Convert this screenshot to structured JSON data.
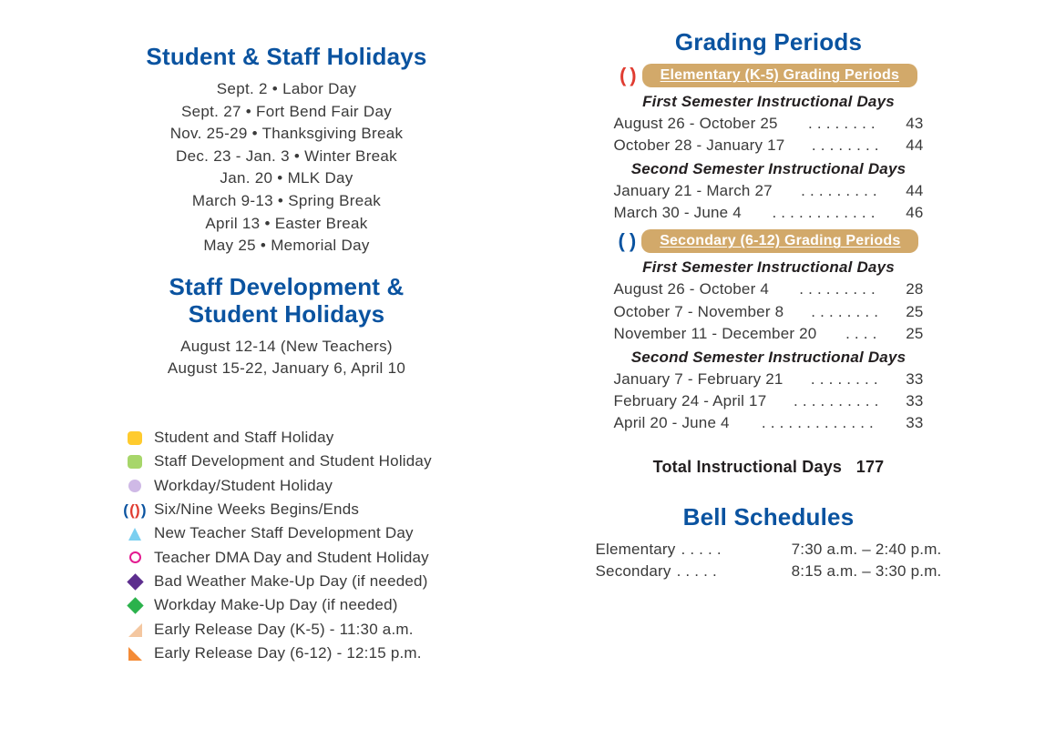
{
  "colors": {
    "heading_blue": "#0a53a0",
    "body_text": "#3a3a3a",
    "pill_bg": "#d2a96a",
    "pill_text": "#ffffff",
    "yellow": "#ffcb2e",
    "lime": "#a7d66a",
    "lavender": "#cfb9e6",
    "red_paren": "#e03c31",
    "sky_triangle": "#7bcff0",
    "pink_ring": "#e31b90",
    "purple_diamond": "#5d2e8e",
    "green_diamond": "#2bb24c",
    "tan_triangle": "#f4c7a0",
    "orange_triangle": "#f48b36"
  },
  "typography": {
    "heading_fontsize_pt": 20,
    "body_fontsize_pt": 13,
    "pill_fontsize_pt": 12,
    "font_family": "Arial, Helvetica, sans-serif"
  },
  "holidays": {
    "title": "Student & Staff Holidays",
    "items": [
      {
        "date": "Sept. 2",
        "name": "Labor Day"
      },
      {
        "date": "Sept. 27",
        "name": "Fort Bend Fair Day"
      },
      {
        "date": "Nov. 25-29",
        "name": "Thanksgiving Break"
      },
      {
        "date": "Dec. 23 - Jan. 3",
        "name": "Winter Break"
      },
      {
        "date": "Jan. 20",
        "name": "MLK Day"
      },
      {
        "date": "March 9-13",
        "name": "Spring Break"
      },
      {
        "date": "April 13",
        "name": "Easter Break"
      },
      {
        "date": "May 25",
        "name": "Memorial Day"
      }
    ]
  },
  "staff_dev": {
    "title": "Staff Development &\nStudent Holidays",
    "lines": [
      "August 12-14 (New Teachers)",
      "August 15-22, January 6, April 10"
    ]
  },
  "legend": [
    {
      "icon": "sq-yellow",
      "label": "Student and Staff Holiday"
    },
    {
      "icon": "sq-green",
      "label": "Staff Development and Student Holiday"
    },
    {
      "icon": "dot-lav",
      "label": "Workday/Student Holiday"
    },
    {
      "icon": "parens",
      "label": "Six/Nine Weeks Begins/Ends"
    },
    {
      "icon": "tri-up",
      "label": "New Teacher Staff Development Day"
    },
    {
      "icon": "ring-red",
      "label": "Teacher DMA Day and Student Holiday"
    },
    {
      "icon": "di-purple",
      "label": "Bad Weather Make-Up Day (if needed)"
    },
    {
      "icon": "di-green",
      "label": "Workday Make-Up Day (if needed)"
    },
    {
      "icon": "tri-br",
      "label": "Early Release Day (K-5) - 11:30 a.m."
    },
    {
      "icon": "tri-bl",
      "label": "Early Release Day (6-12) - 12:15 p.m."
    }
  ],
  "grading": {
    "title": "Grading Periods",
    "elementary": {
      "pill": "Elementary (K-5) Grading Periods",
      "sem1_title": "First Semester Instructional Days",
      "sem1": [
        {
          "range": "August 26 - October 25",
          "dots": " . . . . . . . .",
          "days": "43"
        },
        {
          "range": "October 28 - January 17",
          "dots": ". . . . . . . .",
          "days": "44"
        }
      ],
      "sem2_title": "Second Semester Instructional Days",
      "sem2": [
        {
          "range": "January 21 - March 27",
          "dots": " . . . . . . . . .",
          "days": "44"
        },
        {
          "range": "March 30 - June 4",
          "dots": " . . . . . . . . . . . .",
          "days": "46"
        }
      ]
    },
    "secondary": {
      "pill": "Secondary (6-12) Grading Periods",
      "sem1_title": "First Semester Instructional Days",
      "sem1": [
        {
          "range": "August 26 - October 4",
          "dots": " . . . . . . . . .",
          "days": "28"
        },
        {
          "range": "October 7 - November 8",
          "dots": ". . . . . . . .",
          "days": "25"
        },
        {
          "range": "November 11 - December 20",
          "dots": " . . . .",
          "days": "25"
        }
      ],
      "sem2_title": "Second Semester Instructional Days",
      "sem2": [
        {
          "range": "January 7 - February 21",
          "dots": " . . . . . . . .",
          "days": "33"
        },
        {
          "range": "February 24 - April 17",
          "dots": ". . . . . . . . . .",
          "days": "33"
        },
        {
          "range": "April 20 - June 4",
          "dots": " . . . . . . . . . . . . .",
          "days": "33"
        }
      ]
    },
    "total_label": "Total Instructional Days",
    "total_value": "177"
  },
  "bells": {
    "title": "Bell Schedules",
    "rows": [
      {
        "label": "Elementary",
        "dots": " .  .  .  .  . ",
        "time": "7:30 a.m. – 2:40 p.m."
      },
      {
        "label": "Secondary",
        "dots": " .  .  .  .  . ",
        "time": "8:15 a.m. – 3:30 p.m."
      }
    ]
  }
}
